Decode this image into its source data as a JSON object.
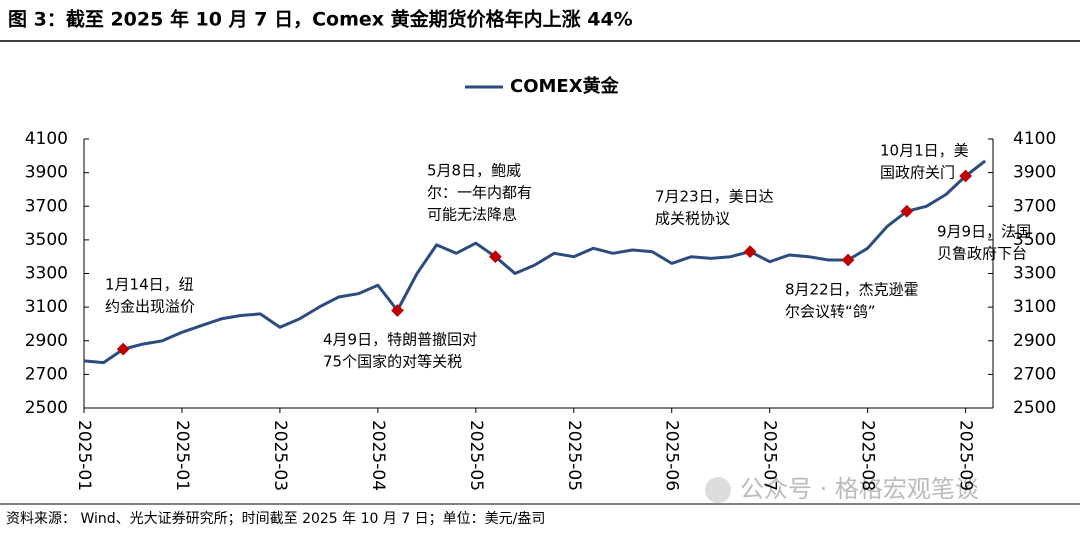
{
  "chart_data": {
    "type": "line",
    "title": "图 3：截至 2025 年 10 月 7 日，Comex 黄金期货价格年内上涨 44%",
    "source": "资料来源： Wind、光大证券研究所；时间截至 2025 年 10 月 7 日；单位：美元/盎司",
    "watermark": "公众号 · 格格宏观笔谈",
    "categories": [
      "2025-01",
      null,
      null,
      null,
      null,
      "2025-01",
      null,
      null,
      null,
      null,
      "2025-03",
      null,
      null,
      null,
      null,
      "2025-04",
      null,
      null,
      null,
      null,
      "2025-05",
      null,
      null,
      null,
      null,
      "2025-05",
      null,
      null,
      null,
      null,
      "2025-06",
      null,
      null,
      null,
      null,
      "2025-07",
      null,
      null,
      null,
      null,
      "2025-08",
      null,
      null,
      null,
      null,
      "2025-09",
      null
    ],
    "series": [
      {
        "name": "COMEX黄金",
        "color": "#2b4c7e",
        "values": [
          2780,
          2770,
          2850,
          2880,
          2900,
          2950,
          2990,
          3030,
          3050,
          3060,
          2980,
          3030,
          3100,
          3160,
          3180,
          3230,
          3080,
          3300,
          3470,
          3420,
          3480,
          3400,
          3300,
          3350,
          3420,
          3400,
          3450,
          3420,
          3440,
          3430,
          3360,
          3400,
          3390,
          3400,
          3430,
          3370,
          3410,
          3400,
          3380,
          3380,
          3450,
          3580,
          3670,
          3700,
          3770,
          3880,
          3970
        ]
      }
    ],
    "markers": {
      "color": "#c00000",
      "values": [
        null,
        null,
        2850,
        null,
        null,
        null,
        null,
        null,
        null,
        null,
        null,
        null,
        null,
        null,
        null,
        null,
        3080,
        null,
        null,
        null,
        null,
        3400,
        null,
        null,
        null,
        null,
        null,
        null,
        null,
        null,
        null,
        null,
        null,
        null,
        3430,
        null,
        null,
        null,
        null,
        3380,
        null,
        null,
        3670,
        null,
        null,
        3880,
        null
      ]
    },
    "annotations": [
      [
        "1月14日，纽",
        "约金出现溢价"
      ],
      [
        "4月9日，特朗普撤回对",
        "75个国家的对等关税"
      ],
      [
        "5月8日，鲍威",
        "尔：一年内都有",
        "可能无法降息"
      ],
      [
        "7月23日，美日达",
        "成关税协议"
      ],
      [
        "8月22日，杰克逊霍",
        "尔会议转“鸽”"
      ],
      [
        "9月9日，法国",
        "贝鲁政府下台"
      ],
      [
        "10月1日，美",
        "国政府关门"
      ]
    ],
    "ylim": [
      2500,
      4100
    ],
    "yticks": [
      2500,
      2700,
      2900,
      3100,
      3300,
      3500,
      3700,
      3900,
      4100
    ],
    "y2lim": [
      2500,
      4100
    ],
    "y2ticks": [
      2500,
      2700,
      2900,
      3100,
      3300,
      3500,
      3700,
      3900,
      4100
    ],
    "legend": "top",
    "grid": false
  }
}
